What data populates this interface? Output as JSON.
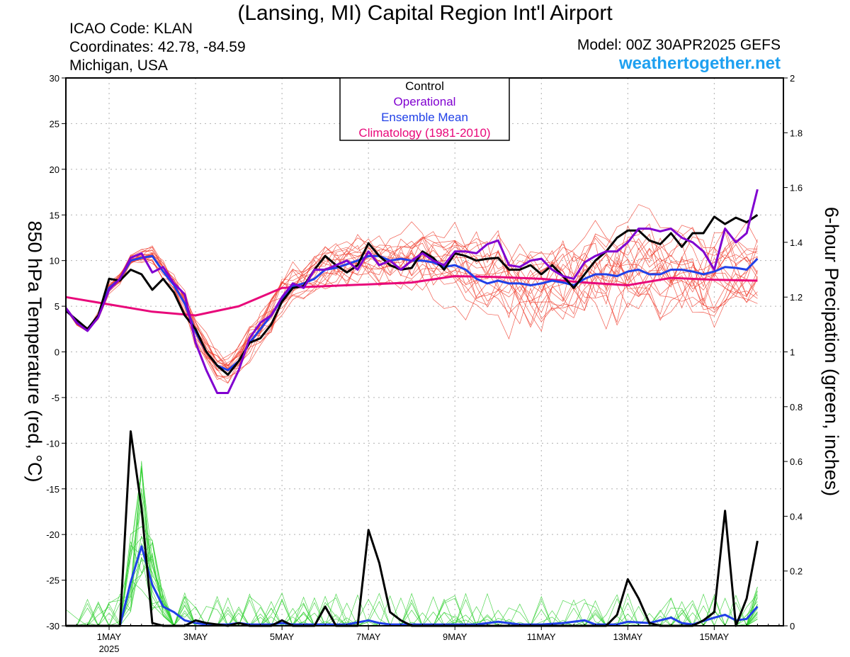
{
  "header": {
    "title": "(Lansing, MI) Capital Region Int'l Airport",
    "icao": "ICAO Code: KLAN",
    "coords": "Coordinates: 42.78, -84.59",
    "region": "Michigan, USA",
    "model": "Model: 00Z 30APR2025 GEFS",
    "site": "weathertogether.net"
  },
  "chart_data": {
    "type": "line",
    "xlabel": "",
    "ylabel_left": "850 hPa Temperature (red, °C)",
    "ylabel_right": "6-hour Precipation (green, inches)",
    "x_unit": "days since 2025-04-30 00Z",
    "xlim": [
      0.0,
      16.6
    ],
    "ylim_left": [
      -30,
      30
    ],
    "ylim_right": [
      0,
      2
    ],
    "x_ticks": [
      {
        "x": 1,
        "label": "1MAY",
        "sub": "2025"
      },
      {
        "x": 3,
        "label": "3MAY",
        "sub": ""
      },
      {
        "x": 5,
        "label": "5MAY",
        "sub": ""
      },
      {
        "x": 7,
        "label": "7MAY",
        "sub": ""
      },
      {
        "x": 9,
        "label": "9MAY",
        "sub": ""
      },
      {
        "x": 11,
        "label": "11MAY",
        "sub": ""
      },
      {
        "x": 13,
        "label": "13MAY",
        "sub": ""
      },
      {
        "x": 15,
        "label": "15MAY",
        "sub": ""
      }
    ],
    "y_ticks_left": [
      -30,
      -25,
      -20,
      -15,
      -10,
      -5,
      0,
      5,
      10,
      15,
      20,
      25,
      30
    ],
    "y_ticks_right": [
      0,
      0.2,
      0.4,
      0.6,
      0.8,
      1,
      1.2,
      1.4,
      1.6,
      1.8,
      2
    ],
    "grid": true,
    "legend": {
      "placement": "top-center",
      "entries": [
        {
          "label": "Control",
          "color": "#000000"
        },
        {
          "label": "Operational",
          "color": "#8000d0"
        },
        {
          "label": "Ensemble Mean",
          "color": "#2040e8"
        },
        {
          "label": "Climatology (1981-2010)",
          "color": "#e8087a"
        }
      ]
    },
    "colors": {
      "members_temp": "#f04030",
      "members_precip": "#30d030",
      "control": "#000000",
      "operational": "#8000d0",
      "mean": "#2040e8",
      "climatology": "#e8087a"
    },
    "series": [
      {
        "name": "Control",
        "axis": "left",
        "points": [
          [
            0.0,
            4.5
          ],
          [
            0.25,
            3.5
          ],
          [
            0.5,
            2.5
          ],
          [
            0.75,
            4.0
          ],
          [
            1.0,
            8.0
          ],
          [
            1.25,
            7.8
          ],
          [
            1.5,
            9.0
          ],
          [
            1.75,
            8.5
          ],
          [
            2.0,
            6.8
          ],
          [
            2.25,
            8.0
          ],
          [
            2.5,
            6.5
          ],
          [
            2.75,
            4.0
          ],
          [
            3.0,
            2.5
          ],
          [
            3.25,
            0.0
          ],
          [
            3.5,
            -1.5
          ],
          [
            3.75,
            -2.5
          ],
          [
            4.0,
            -1.0
          ],
          [
            4.25,
            1.0
          ],
          [
            4.5,
            1.5
          ],
          [
            4.75,
            3.0
          ],
          [
            5.0,
            5.5
          ],
          [
            5.25,
            7.0
          ],
          [
            5.5,
            7.2
          ],
          [
            5.75,
            9.0
          ],
          [
            6.0,
            10.5
          ],
          [
            6.25,
            9.5
          ],
          [
            6.5,
            8.7
          ],
          [
            6.75,
            9.5
          ],
          [
            7.0,
            11.9
          ],
          [
            7.25,
            10.5
          ],
          [
            7.5,
            9.5
          ],
          [
            7.75,
            9.0
          ],
          [
            8.0,
            9.2
          ],
          [
            8.25,
            11.0
          ],
          [
            8.5,
            10.3
          ],
          [
            8.75,
            9.0
          ],
          [
            9.0,
            10.8
          ],
          [
            9.25,
            10.5
          ],
          [
            9.5,
            10.0
          ],
          [
            9.75,
            10.2
          ],
          [
            10.0,
            10.3
          ],
          [
            10.25,
            9.0
          ],
          [
            10.5,
            9.0
          ],
          [
            10.75,
            9.5
          ],
          [
            11.0,
            8.5
          ],
          [
            11.25,
            9.5
          ],
          [
            11.5,
            8.3
          ],
          [
            11.75,
            7.0
          ],
          [
            12.0,
            8.5
          ],
          [
            12.25,
            10.0
          ],
          [
            12.5,
            11.0
          ],
          [
            12.75,
            12.5
          ],
          [
            13.0,
            13.3
          ],
          [
            13.25,
            13.3
          ],
          [
            13.5,
            12.2
          ],
          [
            13.75,
            11.8
          ],
          [
            14.0,
            13.0
          ],
          [
            14.25,
            11.5
          ],
          [
            14.5,
            13.0
          ],
          [
            14.75,
            13.0
          ],
          [
            15.0,
            14.8
          ],
          [
            15.25,
            14.0
          ],
          [
            15.5,
            14.7
          ],
          [
            15.75,
            14.2
          ],
          [
            16.0,
            15.0
          ]
        ]
      },
      {
        "name": "Operational",
        "axis": "left",
        "points": [
          [
            0.0,
            4.8
          ],
          [
            0.25,
            3.2
          ],
          [
            0.5,
            2.3
          ],
          [
            0.75,
            3.8
          ],
          [
            1.0,
            6.8
          ],
          [
            1.25,
            8.0
          ],
          [
            1.5,
            10.3
          ],
          [
            1.75,
            10.8
          ],
          [
            2.0,
            8.7
          ],
          [
            2.25,
            9.3
          ],
          [
            2.5,
            7.5
          ],
          [
            2.75,
            6.3
          ],
          [
            3.0,
            1.0
          ],
          [
            3.25,
            -2.0
          ],
          [
            3.5,
            -4.5
          ],
          [
            3.75,
            -4.5
          ],
          [
            4.0,
            -2.0
          ],
          [
            4.25,
            1.5
          ],
          [
            4.5,
            3.2
          ],
          [
            4.75,
            4.0
          ],
          [
            5.0,
            6.0
          ],
          [
            5.25,
            7.5
          ],
          [
            5.5,
            7.0
          ],
          [
            5.75,
            9.0
          ],
          [
            6.0,
            9.0
          ],
          [
            6.25,
            9.5
          ],
          [
            6.5,
            10.0
          ],
          [
            6.75,
            9.0
          ],
          [
            7.0,
            11.0
          ],
          [
            7.25,
            9.5
          ],
          [
            7.5,
            10.0
          ],
          [
            7.75,
            9.0
          ],
          [
            8.0,
            10.0
          ],
          [
            8.25,
            10.8
          ],
          [
            8.5,
            10.0
          ],
          [
            8.75,
            9.5
          ],
          [
            9.0,
            11.0
          ],
          [
            9.25,
            11.0
          ],
          [
            9.5,
            10.8
          ],
          [
            9.75,
            11.8
          ],
          [
            10.0,
            12.2
          ],
          [
            10.25,
            9.5
          ],
          [
            10.5,
            9.3
          ],
          [
            10.75,
            10.0
          ],
          [
            11.0,
            10.2
          ],
          [
            11.25,
            9.0
          ],
          [
            11.5,
            8.3
          ],
          [
            11.75,
            8.0
          ],
          [
            12.0,
            9.8
          ],
          [
            12.25,
            10.5
          ],
          [
            12.5,
            11.0
          ],
          [
            12.75,
            11.0
          ],
          [
            13.0,
            12.0
          ],
          [
            13.25,
            13.5
          ],
          [
            13.5,
            13.5
          ],
          [
            13.75,
            13.2
          ],
          [
            14.0,
            13.5
          ],
          [
            14.25,
            12.5
          ],
          [
            14.5,
            12.0
          ],
          [
            14.75,
            11.0
          ],
          [
            15.0,
            9.0
          ],
          [
            15.25,
            13.5
          ],
          [
            15.5,
            12.0
          ],
          [
            15.75,
            13.0
          ],
          [
            16.0,
            17.8
          ]
        ]
      },
      {
        "name": "Ensemble Mean",
        "axis": "left",
        "points": [
          [
            0.0,
            4.8
          ],
          [
            0.25,
            3.2
          ],
          [
            0.5,
            2.5
          ],
          [
            0.75,
            4.0
          ],
          [
            1.0,
            7.0
          ],
          [
            1.25,
            8.0
          ],
          [
            1.5,
            10.0
          ],
          [
            1.75,
            10.3
          ],
          [
            2.0,
            10.5
          ],
          [
            2.25,
            8.8
          ],
          [
            2.5,
            7.3
          ],
          [
            2.75,
            5.3
          ],
          [
            3.0,
            2.2
          ],
          [
            3.25,
            0.0
          ],
          [
            3.5,
            -1.5
          ],
          [
            3.75,
            -2.0
          ],
          [
            4.0,
            -1.0
          ],
          [
            4.25,
            1.0
          ],
          [
            4.5,
            2.5
          ],
          [
            4.75,
            4.0
          ],
          [
            5.0,
            5.8
          ],
          [
            5.25,
            7.2
          ],
          [
            5.5,
            7.5
          ],
          [
            5.75,
            8.0
          ],
          [
            6.0,
            9.0
          ],
          [
            6.25,
            9.2
          ],
          [
            6.5,
            9.6
          ],
          [
            6.75,
            10.0
          ],
          [
            7.0,
            10.5
          ],
          [
            7.25,
            10.5
          ],
          [
            7.5,
            10.0
          ],
          [
            7.75,
            10.2
          ],
          [
            8.0,
            10.0
          ],
          [
            8.25,
            10.0
          ],
          [
            8.5,
            9.8
          ],
          [
            8.75,
            9.3
          ],
          [
            9.0,
            9.5
          ],
          [
            9.25,
            9.0
          ],
          [
            9.5,
            8.0
          ],
          [
            9.75,
            7.5
          ],
          [
            10.0,
            7.8
          ],
          [
            10.25,
            7.5
          ],
          [
            10.5,
            7.5
          ],
          [
            10.75,
            7.3
          ],
          [
            11.0,
            7.5
          ],
          [
            11.25,
            7.8
          ],
          [
            11.5,
            7.6
          ],
          [
            11.75,
            7.3
          ],
          [
            12.0,
            8.0
          ],
          [
            12.25,
            8.5
          ],
          [
            12.5,
            8.5
          ],
          [
            12.75,
            8.3
          ],
          [
            13.0,
            8.8
          ],
          [
            13.25,
            9.0
          ],
          [
            13.5,
            8.5
          ],
          [
            13.75,
            8.5
          ],
          [
            14.0,
            9.0
          ],
          [
            14.25,
            9.0
          ],
          [
            14.5,
            8.8
          ],
          [
            14.75,
            8.5
          ],
          [
            15.0,
            8.8
          ],
          [
            15.25,
            9.3
          ],
          [
            15.5,
            9.2
          ],
          [
            15.75,
            9.0
          ],
          [
            16.0,
            10.2
          ]
        ]
      },
      {
        "name": "Climatology (1981-2010)",
        "axis": "left",
        "points": [
          [
            0.0,
            6.0
          ],
          [
            1.0,
            5.2
          ],
          [
            2.0,
            4.4
          ],
          [
            3.0,
            4.0
          ],
          [
            4.0,
            5.0
          ],
          [
            5.0,
            7.0
          ],
          [
            6.0,
            7.2
          ],
          [
            7.0,
            7.4
          ],
          [
            8.0,
            7.6
          ],
          [
            9.0,
            8.3
          ],
          [
            10.0,
            8.2
          ],
          [
            11.0,
            8.0
          ],
          [
            12.0,
            7.6
          ],
          [
            13.0,
            7.3
          ],
          [
            14.0,
            8.1
          ],
          [
            15.0,
            7.9
          ],
          [
            16.0,
            7.8
          ]
        ]
      },
      {
        "name": "Control",
        "axis": "right",
        "points": [
          [
            0.0,
            0.0
          ],
          [
            1.25,
            0.0
          ],
          [
            1.5,
            0.71
          ],
          [
            1.75,
            0.43
          ],
          [
            2.0,
            0.01
          ],
          [
            2.25,
            0.0
          ],
          [
            2.75,
            0.0
          ],
          [
            3.0,
            0.02
          ],
          [
            3.25,
            0.01
          ],
          [
            3.75,
            0.0
          ],
          [
            4.0,
            0.01
          ],
          [
            4.25,
            0.0
          ],
          [
            4.75,
            0.0
          ],
          [
            5.0,
            0.02
          ],
          [
            5.25,
            0.0
          ],
          [
            5.75,
            0.0
          ],
          [
            6.0,
            0.07
          ],
          [
            6.25,
            0.0
          ],
          [
            6.75,
            0.0
          ],
          [
            7.0,
            0.35
          ],
          [
            7.25,
            0.23
          ],
          [
            7.5,
            0.05
          ],
          [
            7.75,
            0.02
          ],
          [
            8.0,
            0.0
          ],
          [
            12.5,
            0.0
          ],
          [
            12.75,
            0.04
          ],
          [
            13.0,
            0.17
          ],
          [
            13.25,
            0.1
          ],
          [
            13.5,
            0.01
          ],
          [
            13.75,
            0.0
          ],
          [
            14.5,
            0.0
          ],
          [
            14.75,
            0.02
          ],
          [
            15.0,
            0.05
          ],
          [
            15.25,
            0.42
          ],
          [
            15.5,
            0.0
          ],
          [
            15.75,
            0.1
          ],
          [
            16.0,
            0.31
          ]
        ]
      },
      {
        "name": "Ensemble Mean",
        "axis": "right",
        "points": [
          [
            0.0,
            0.0
          ],
          [
            1.25,
            0.0
          ],
          [
            1.5,
            0.16
          ],
          [
            1.75,
            0.29
          ],
          [
            2.0,
            0.15
          ],
          [
            2.25,
            0.07
          ],
          [
            2.5,
            0.05
          ],
          [
            2.75,
            0.02
          ],
          [
            3.0,
            0.01
          ],
          [
            3.25,
            0.005
          ],
          [
            3.75,
            0.005
          ],
          [
            4.0,
            0.01
          ],
          [
            4.25,
            0.005
          ],
          [
            4.75,
            0.005
          ],
          [
            5.0,
            0.01
          ],
          [
            5.25,
            0.005
          ],
          [
            6.5,
            0.005
          ],
          [
            7.0,
            0.02
          ],
          [
            7.25,
            0.01
          ],
          [
            7.5,
            0.005
          ],
          [
            9.5,
            0.005
          ],
          [
            10.0,
            0.015
          ],
          [
            10.5,
            0.005
          ],
          [
            11.0,
            0.005
          ],
          [
            11.5,
            0.01
          ],
          [
            12.0,
            0.02
          ],
          [
            12.25,
            0.005
          ],
          [
            12.75,
            0.005
          ],
          [
            13.0,
            0.015
          ],
          [
            13.5,
            0.01
          ],
          [
            14.0,
            0.03
          ],
          [
            14.25,
            0.01
          ],
          [
            14.5,
            0.005
          ],
          [
            15.0,
            0.03
          ],
          [
            15.25,
            0.04
          ],
          [
            15.5,
            0.02
          ],
          [
            15.75,
            0.025
          ],
          [
            16.0,
            0.07
          ]
        ]
      }
    ]
  }
}
